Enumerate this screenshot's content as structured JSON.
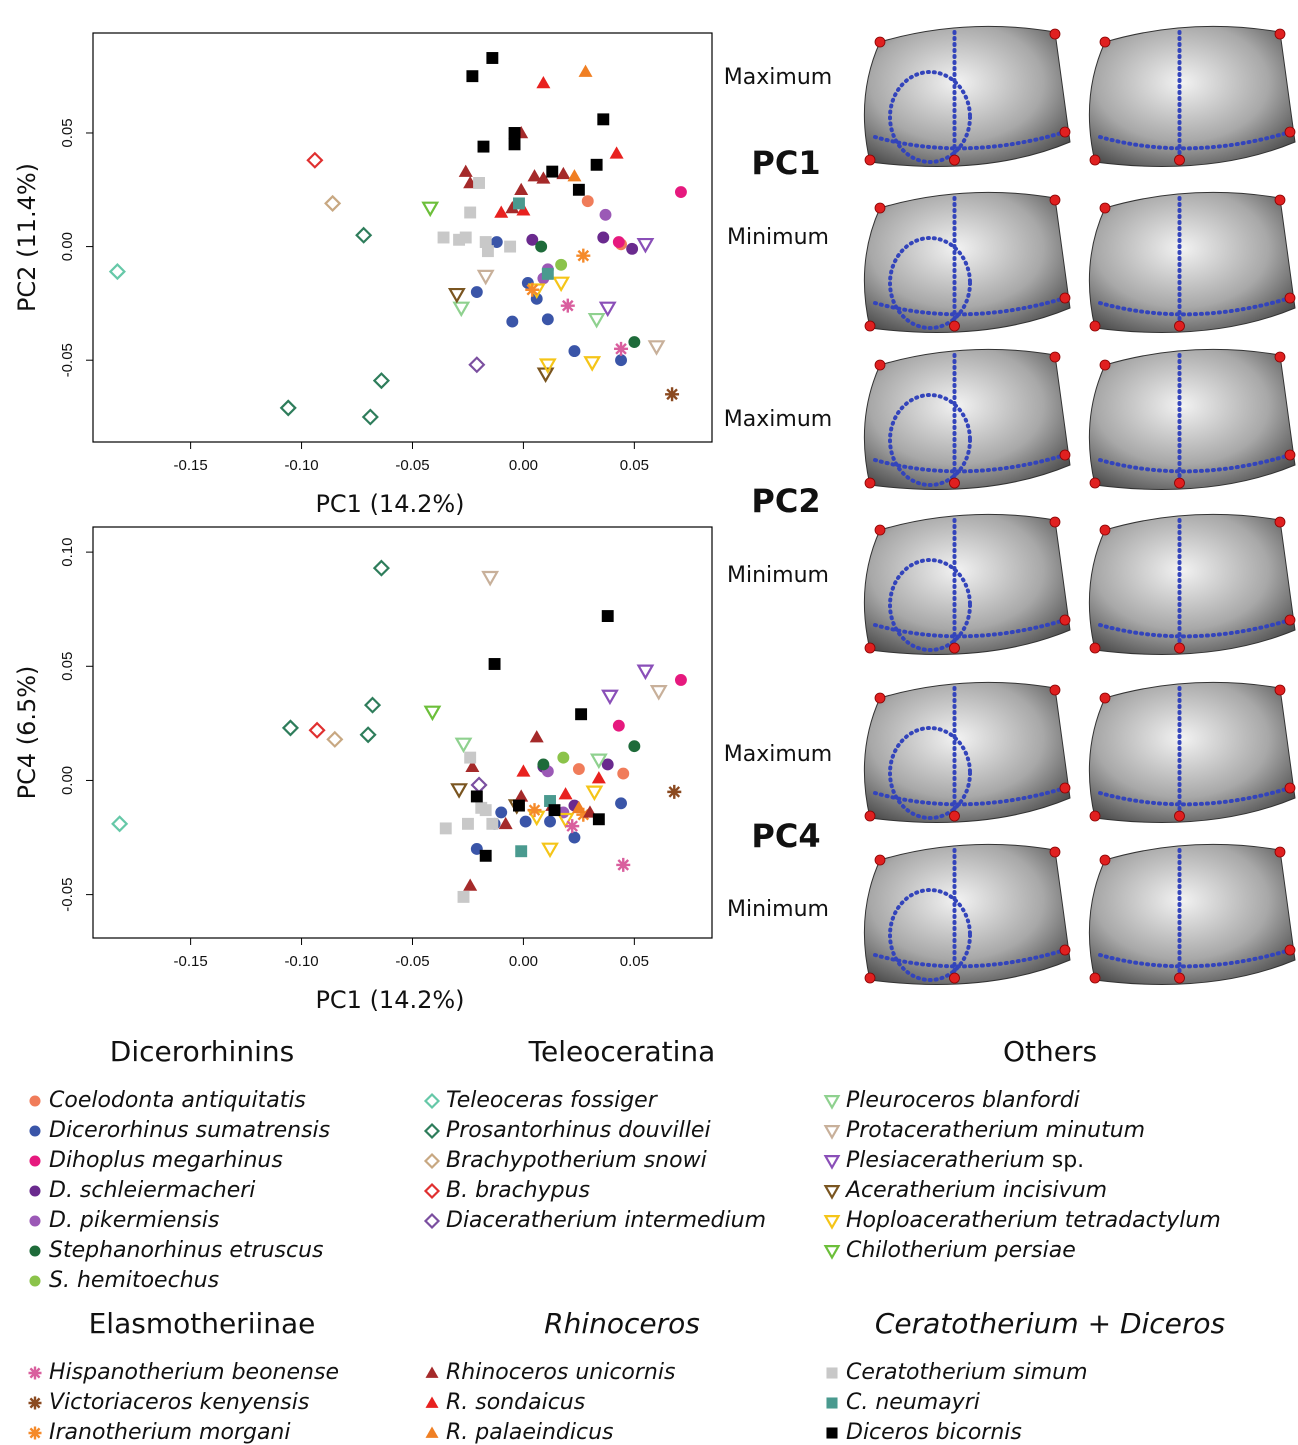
{
  "chart_data": [
    {
      "type": "scatter",
      "xlabel": "PC1 (14.2%)",
      "ylabel": "PC2 (11.4%)",
      "xlim": [
        -0.194,
        0.085
      ],
      "ylim": [
        -0.086,
        0.094
      ],
      "xticks": [
        -0.15,
        {
          "value": -0.1,
          "label": "-0.10"
        },
        -0.05,
        {
          "value": 0,
          "label": "0.00"
        },
        0.05
      ],
      "yticks": [
        -0.05,
        {
          "value": 0,
          "label": "0.00"
        },
        0.05
      ],
      "series": [
        {
          "x": [
            0.029,
            0.044
          ],
          "y": [
            0.02,
            0.001
          ]
        },
        {
          "x": [
            -0.012,
            -0.021,
            -0.005,
            0.006,
            0.011,
            0.023,
            0.044,
            0.002
          ],
          "y": [
            0.002,
            -0.02,
            -0.033,
            -0.023,
            -0.032,
            -0.046,
            -0.05,
            -0.016
          ]
        },
        {
          "x": [
            0.071,
            0.043
          ],
          "y": [
            0.024,
            0.002
          ]
        },
        {
          "x": [
            0.004,
            0.036,
            0.049
          ],
          "y": [
            0.003,
            0.004,
            -0.001
          ]
        },
        {
          "x": [
            0.037,
            0.009,
            0.011
          ],
          "y": [
            0.014,
            -0.014,
            -0.01
          ]
        },
        {
          "x": [
            0.008,
            0.05
          ],
          "y": [
            0.0,
            -0.042
          ]
        },
        {
          "x": [
            0.017
          ],
          "y": [
            -0.008
          ]
        },
        {
          "x": [
            -0.183
          ],
          "y": [
            -0.011
          ]
        },
        {
          "x": [
            -0.072,
            -0.106,
            -0.064,
            -0.069
          ],
          "y": [
            0.005,
            -0.071,
            -0.059,
            -0.075
          ]
        },
        {
          "x": [
            -0.086
          ],
          "y": [
            0.019
          ]
        },
        {
          "x": [
            -0.094
          ],
          "y": [
            0.038
          ]
        },
        {
          "x": [
            -0.021
          ],
          "y": [
            -0.052
          ]
        },
        {
          "x": [
            -0.028,
            0.033
          ],
          "y": [
            -0.027,
            -0.032
          ]
        },
        {
          "x": [
            -0.017,
            0.06
          ],
          "y": [
            -0.013,
            -0.044
          ]
        },
        {
          "x": [
            0.055,
            0.038
          ],
          "y": [
            0.001,
            -0.027
          ]
        },
        {
          "x": [
            -0.03,
            0.01
          ],
          "y": [
            -0.021,
            -0.056
          ]
        },
        {
          "x": [
            0.006,
            0.017,
            0.011,
            0.031
          ],
          "y": [
            -0.019,
            -0.016,
            -0.052,
            -0.051
          ]
        },
        {
          "x": [
            -0.042
          ],
          "y": [
            0.017
          ]
        },
        {
          "x": [
            0.02,
            0.044
          ],
          "y": [
            -0.026,
            -0.045
          ]
        },
        {
          "x": [
            0.067
          ],
          "y": [
            -0.065
          ]
        },
        {
          "x": [
            0.027,
            0.004
          ],
          "y": [
            -0.004,
            -0.019
          ]
        },
        {
          "x": [
            -0.026,
            -0.024,
            -0.001,
            -0.001,
            0.005,
            0.009,
            0.018,
            -0.005
          ],
          "y": [
            0.033,
            0.028,
            0.05,
            0.025,
            0.031,
            0.03,
            0.032,
            0.017
          ]
        },
        {
          "x": [
            0.009,
            0.042,
            -0.01,
            0.0
          ],
          "y": [
            0.072,
            0.041,
            0.015,
            0.016
          ]
        },
        {
          "x": [
            0.028,
            0.023
          ],
          "y": [
            0.077,
            0.031
          ]
        },
        {
          "x": [
            -0.02,
            -0.024,
            -0.036,
            -0.029,
            -0.026,
            -0.017,
            -0.016,
            -0.006
          ],
          "y": [
            0.028,
            0.015,
            0.004,
            0.003,
            0.004,
            0.002,
            -0.002,
            0.0
          ]
        },
        {
          "x": [
            -0.002,
            0.011
          ],
          "y": [
            0.019,
            -0.012
          ]
        },
        {
          "x": [
            -0.014,
            -0.023,
            -0.018,
            -0.004,
            -0.004,
            0.013,
            0.036,
            0.033,
            0.025
          ],
          "y": [
            0.083,
            0.075,
            0.044,
            0.05,
            0.045,
            0.033,
            0.056,
            0.036,
            0.025
          ]
        }
      ]
    },
    {
      "type": "scatter",
      "xlabel": "PC1 (14.2%)",
      "ylabel": "PC4 (6.5%)",
      "xlim": [
        -0.194,
        0.085
      ],
      "ylim": [
        -0.069,
        0.111
      ],
      "xticks": [
        -0.15,
        {
          "value": -0.1,
          "label": "-0.10"
        },
        -0.05,
        {
          "value": 0,
          "label": "0.00"
        },
        0.05
      ],
      "yticks": [
        -0.05,
        {
          "value": 0,
          "label": "0.00"
        },
        0.05,
        {
          "value": 0.1,
          "label": "0.10"
        }
      ],
      "series": [
        {
          "x": [
            0.025,
            0.045
          ],
          "y": [
            0.005,
            0.003
          ]
        },
        {
          "x": [
            -0.021,
            -0.013,
            0.001,
            0.012,
            0.023,
            0.044,
            -0.01
          ],
          "y": [
            -0.03,
            -0.019,
            -0.018,
            -0.018,
            -0.025,
            -0.01,
            -0.014
          ]
        },
        {
          "x": [
            0.071,
            0.043
          ],
          "y": [
            0.044,
            0.024
          ]
        },
        {
          "x": [
            0.009,
            0.038,
            0.023
          ],
          "y": [
            0.006,
            0.007,
            -0.011
          ]
        },
        {
          "x": [
            0.011,
            0.018
          ],
          "y": [
            0.004,
            -0.014
          ]
        },
        {
          "x": [
            0.05,
            0.009
          ],
          "y": [
            0.015,
            0.007
          ]
        },
        {
          "x": [
            0.018
          ],
          "y": [
            0.01
          ]
        },
        {
          "x": [
            -0.182
          ],
          "y": [
            -0.019
          ]
        },
        {
          "x": [
            -0.105,
            -0.064,
            -0.068,
            -0.07
          ],
          "y": [
            0.023,
            0.093,
            0.033,
            0.02
          ]
        },
        {
          "x": [
            -0.085
          ],
          "y": [
            0.018
          ]
        },
        {
          "x": [
            -0.093
          ],
          "y": [
            0.022
          ]
        },
        {
          "x": [
            -0.02
          ],
          "y": [
            -0.002
          ]
        },
        {
          "x": [
            -0.027,
            0.034
          ],
          "y": [
            0.016,
            0.009
          ]
        },
        {
          "x": [
            -0.015,
            0.061
          ],
          "y": [
            0.089,
            0.039
          ]
        },
        {
          "x": [
            0.055,
            0.039
          ],
          "y": [
            0.048,
            0.037
          ]
        },
        {
          "x": [
            -0.029,
            -0.003
          ],
          "y": [
            -0.004,
            -0.011
          ]
        },
        {
          "x": [
            0.006,
            0.019,
            0.012,
            0.032
          ],
          "y": [
            -0.016,
            -0.017,
            -0.03,
            -0.005
          ]
        },
        {
          "x": [
            -0.041
          ],
          "y": [
            0.03
          ]
        },
        {
          "x": [
            0.045,
            0.022
          ],
          "y": [
            -0.037,
            -0.02
          ]
        },
        {
          "x": [
            0.068
          ],
          "y": [
            -0.005
          ]
        },
        {
          "x": [
            0.005,
            0.027
          ],
          "y": [
            -0.013,
            -0.015
          ]
        },
        {
          "x": [
            -0.024,
            -0.023,
            -0.008,
            0.006,
            -0.001,
            0.013,
            0.03
          ],
          "y": [
            -0.046,
            0.006,
            -0.019,
            0.019,
            -0.007,
            -0.011,
            -0.014
          ]
        },
        {
          "x": [
            0.0,
            0.019,
            0.034
          ],
          "y": [
            0.004,
            -0.006,
            0.001
          ]
        },
        {
          "x": [
            0.025
          ],
          "y": [
            -0.012
          ]
        },
        {
          "x": [
            -0.027,
            -0.035,
            -0.025,
            -0.019,
            -0.017,
            -0.024,
            -0.014
          ],
          "y": [
            -0.051,
            -0.021,
            -0.019,
            -0.012,
            -0.013,
            0.01,
            -0.019
          ]
        },
        {
          "x": [
            -0.001,
            0.012
          ],
          "y": [
            -0.031,
            -0.009
          ]
        },
        {
          "x": [
            0.038,
            -0.013,
            0.026,
            -0.002,
            0.014,
            -0.017,
            -0.021,
            0.034
          ],
          "y": [
            0.072,
            0.051,
            0.029,
            -0.011,
            -0.013,
            -0.033,
            -0.007,
            -0.017
          ]
        }
      ]
    }
  ],
  "legend": {
    "groups": [
      {
        "title": "Dicerorhinins",
        "italic": false,
        "series": [
          {
            "name": "Coelodonta antiquitatis",
            "color": "#f07c5a",
            "marker": "circle"
          },
          {
            "name": "Dicerorhinus sumatrensis",
            "color": "#3a55a8",
            "marker": "circle"
          },
          {
            "name": "Dihoplus megarhinus",
            "color": "#e6197e",
            "marker": "circle"
          },
          {
            "name": "D. schleiermacheri",
            "color": "#6a2a8e",
            "marker": "circle"
          },
          {
            "name": "D. pikermiensis",
            "color": "#9b59b6",
            "marker": "circle"
          },
          {
            "name": "Stephanorhinus etruscus",
            "color": "#1e6b3a",
            "marker": "circle"
          },
          {
            "name": "S. hemitoechus",
            "color": "#8bc34a",
            "marker": "circle"
          }
        ]
      },
      {
        "title": "Teleoceratina",
        "italic": false,
        "series": [
          {
            "name": "Teleoceras fossiger",
            "color": "#66c8a8",
            "marker": "diamond"
          },
          {
            "name": "Prosantorhinus douvillei",
            "color": "#2e7d5b",
            "marker": "diamond"
          },
          {
            "name": "Brachypotherium snowi",
            "color": "#c8a882",
            "marker": "diamond"
          },
          {
            "name": "B. brachypus",
            "color": "#e03030",
            "marker": "diamond"
          },
          {
            "name": "Diaceratherium intermedium",
            "color": "#7b4fa0",
            "marker": "diamond"
          }
        ]
      },
      {
        "title": "Others",
        "italic": false,
        "series": [
          {
            "name": "Pleuroceros blanfordi",
            "color": "#8fd18f",
            "marker": "triangle-down"
          },
          {
            "name": "Protaceratherium minutum",
            "color": "#c8b09a",
            "marker": "triangle-down"
          },
          {
            "name": "Plesiaceratherium sp.",
            "color": "#8a4fb8",
            "marker": "triangle-down"
          },
          {
            "name": "Aceratherium incisivum",
            "color": "#7a5520",
            "marker": "triangle-down"
          },
          {
            "name": "Hoploaceratherium tetradactylum",
            "color": "#f5c518",
            "marker": "triangle-down"
          },
          {
            "name": "Chilotherium persiae",
            "color": "#6cbf3a",
            "marker": "triangle-down"
          }
        ]
      },
      {
        "title": "Elasmotheriinae",
        "italic": false,
        "series": [
          {
            "name": "Hispanotherium beonense",
            "color": "#d95f9e",
            "marker": "asterisk"
          },
          {
            "name": "Victoriaceros kenyensis",
            "color": "#8b4a20",
            "marker": "asterisk"
          },
          {
            "name": "Iranotherium morgani",
            "color": "#f58a2a",
            "marker": "asterisk"
          }
        ]
      },
      {
        "title": "Rhinoceros",
        "italic": true,
        "series": [
          {
            "name": "Rhinoceros unicornis",
            "color": "#a52a2a",
            "marker": "triangle-up"
          },
          {
            "name": "R. sondaicus",
            "color": "#e8211f",
            "marker": "triangle-up"
          },
          {
            "name": "R. palaeindicus",
            "color": "#f07f23",
            "marker": "triangle-up"
          }
        ]
      },
      {
        "title": "Ceratotherium  + Diceros",
        "italic": true,
        "series": [
          {
            "name": "Ceratotherium simum",
            "color": "#c8c8c8",
            "marker": "square"
          },
          {
            "name": "C. neumayri",
            "color": "#4a9a8f",
            "marker": "square"
          },
          {
            "name": "Diceros bicornis",
            "color": "#000000",
            "marker": "square"
          }
        ]
      }
    ]
  },
  "panels": [
    {
      "title": "PC1",
      "max": "Maximum",
      "min": "Minimum"
    },
    {
      "title": "PC2",
      "max": "Maximum",
      "min": "Minimum"
    },
    {
      "title": "PC4",
      "max": "Maximum",
      "min": "Minimum"
    }
  ]
}
